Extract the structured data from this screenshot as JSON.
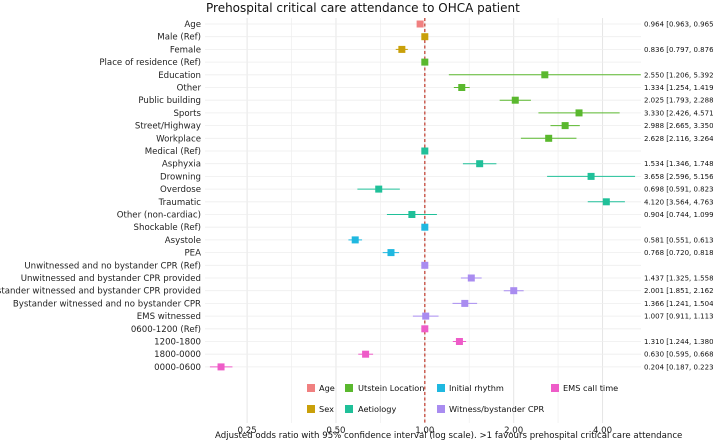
{
  "chart_data": {
    "type": "forest",
    "title": "Prehospital critical care attendance to OHCA patient",
    "xlabel": "Adjusted odds ratio with 95% confidence interval (log scale). >1 favours prehospital critical care attendance",
    "x_scale": "log",
    "xlim": [
      0.18,
      5.4
    ],
    "x_ticks": [
      {
        "value": 0.25,
        "label": "0.25"
      },
      {
        "value": 0.5,
        "label": "0.50"
      },
      {
        "value": 1,
        "label": "1.00"
      },
      {
        "value": 2,
        "label": "2.00"
      },
      {
        "value": 4,
        "label": "4.00"
      }
    ],
    "reference_line": 1,
    "grid": true,
    "rows": [
      {
        "label": "Age",
        "group": "Age",
        "or": 0.964,
        "lo": 0.963,
        "hi": 0.965,
        "ci_text": "0.964 [0.963, 0.965]"
      },
      {
        "label": "Male (Ref)",
        "group": "Sex",
        "or": 1,
        "lo": 1,
        "hi": 1,
        "ci_text": ""
      },
      {
        "label": "Female",
        "group": "Sex",
        "or": 0.836,
        "lo": 0.797,
        "hi": 0.876,
        "ci_text": "0.836 [0.797, 0.876]"
      },
      {
        "label": "Place of residence (Ref)",
        "group": "Utstein Location",
        "or": 1,
        "lo": 1,
        "hi": 1,
        "ci_text": ""
      },
      {
        "label": "Education",
        "group": "Utstein Location",
        "or": 2.55,
        "lo": 1.206,
        "hi": 5.392,
        "ci_text": "2.550 [1.206, 5.392]"
      },
      {
        "label": "Other",
        "group": "Utstein Location",
        "or": 1.334,
        "lo": 1.254,
        "hi": 1.419,
        "ci_text": "1.334 [1.254, 1.419]"
      },
      {
        "label": "Public building",
        "group": "Utstein Location",
        "or": 2.025,
        "lo": 1.793,
        "hi": 2.288,
        "ci_text": "2.025 [1.793, 2.288]"
      },
      {
        "label": "Sports",
        "group": "Utstein Location",
        "or": 3.33,
        "lo": 2.426,
        "hi": 4.571,
        "ci_text": "3.330 [2.426, 4.571]"
      },
      {
        "label": "Street/Highway",
        "group": "Utstein Location",
        "or": 2.988,
        "lo": 2.665,
        "hi": 3.35,
        "ci_text": "2.988 [2.665, 3.350]"
      },
      {
        "label": "Workplace",
        "group": "Utstein Location",
        "or": 2.628,
        "lo": 2.116,
        "hi": 3.264,
        "ci_text": "2.628 [2.116, 3.264]"
      },
      {
        "label": "Medical (Ref)",
        "group": "Aetiology",
        "or": 1,
        "lo": 1,
        "hi": 1,
        "ci_text": ""
      },
      {
        "label": "Asphyxia",
        "group": "Aetiology",
        "or": 1.534,
        "lo": 1.346,
        "hi": 1.748,
        "ci_text": "1.534 [1.346, 1.748]"
      },
      {
        "label": "Drowning",
        "group": "Aetiology",
        "or": 3.658,
        "lo": 2.596,
        "hi": 5.156,
        "ci_text": "3.658 [2.596, 5.156]"
      },
      {
        "label": "Overdose",
        "group": "Aetiology",
        "or": 0.698,
        "lo": 0.591,
        "hi": 0.823,
        "ci_text": "0.698 [0.591, 0.823]"
      },
      {
        "label": "Traumatic",
        "group": "Aetiology",
        "or": 4.12,
        "lo": 3.564,
        "hi": 4.763,
        "ci_text": "4.120 [3.564, 4.763]"
      },
      {
        "label": "Other (non-cardiac)",
        "group": "Aetiology",
        "or": 0.904,
        "lo": 0.744,
        "hi": 1.099,
        "ci_text": "0.904 [0.744, 1.099]"
      },
      {
        "label": "Shockable (Ref)",
        "group": "Initial rhythm",
        "or": 1,
        "lo": 1,
        "hi": 1,
        "ci_text": ""
      },
      {
        "label": "Asystole",
        "group": "Initial rhythm",
        "or": 0.581,
        "lo": 0.551,
        "hi": 0.613,
        "ci_text": "0.581 [0.551, 0.613]"
      },
      {
        "label": "PEA",
        "group": "Initial rhythm",
        "or": 0.768,
        "lo": 0.72,
        "hi": 0.818,
        "ci_text": "0.768 [0.720, 0.818]"
      },
      {
        "label": "Unwitnessed and no bystander CPR (Ref)",
        "group": "Witness/bystander CPR",
        "or": 1,
        "lo": 1,
        "hi": 1,
        "ci_text": ""
      },
      {
        "label": "Unwitnessed and bystander CPR provided",
        "group": "Witness/bystander CPR",
        "or": 1.437,
        "lo": 1.325,
        "hi": 1.558,
        "ci_text": "1.437 [1.325, 1.558]"
      },
      {
        "label": "Bystander witnessed and bystander CPR provided",
        "group": "Witness/bystander CPR",
        "or": 2.001,
        "lo": 1.851,
        "hi": 2.162,
        "ci_text": "2.001 [1.851, 2.162]"
      },
      {
        "label": "Bystander witnessed and no bystander CPR",
        "group": "Witness/bystander CPR",
        "or": 1.366,
        "lo": 1.241,
        "hi": 1.504,
        "ci_text": "1.366 [1.241, 1.504]"
      },
      {
        "label": "EMS witnessed",
        "group": "Witness/bystander CPR",
        "or": 1.007,
        "lo": 0.911,
        "hi": 1.113,
        "ci_text": "1.007 [0.911, 1.113]"
      },
      {
        "label": "0600-1200 (Ref)",
        "group": "EMS call time",
        "or": 1,
        "lo": 1,
        "hi": 1,
        "ci_text": ""
      },
      {
        "label": "1200-1800",
        "group": "EMS call time",
        "or": 1.31,
        "lo": 1.244,
        "hi": 1.38,
        "ci_text": "1.310 [1.244, 1.380]"
      },
      {
        "label": "1800-0000",
        "group": "EMS call time",
        "or": 0.63,
        "lo": 0.595,
        "hi": 0.668,
        "ci_text": "0.630 [0.595, 0.668]"
      },
      {
        "label": "0000-0600",
        "group": "EMS call time",
        "or": 0.204,
        "lo": 0.187,
        "hi": 0.223,
        "ci_text": "0.204 [0.187, 0.223]"
      }
    ],
    "legend": {
      "placement": "bottom",
      "items": [
        {
          "name": "Age",
          "color": "#f08080"
        },
        {
          "name": "Utstein Location",
          "color": "#5ab82e"
        },
        {
          "name": "Initial rhythm",
          "color": "#1fb8e0"
        },
        {
          "name": "EMS call time",
          "color": "#ee5cc8"
        },
        {
          "name": "Sex",
          "color": "#c9a00a"
        },
        {
          "name": "Aetiology",
          "color": "#20c099"
        },
        {
          "name": "Witness/bystander CPR",
          "color": "#a98cf0"
        }
      ]
    }
  }
}
